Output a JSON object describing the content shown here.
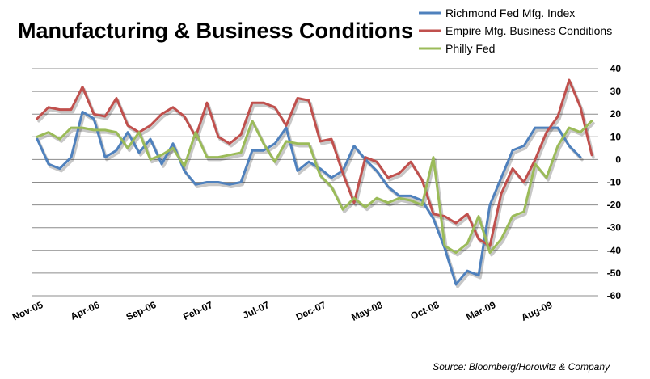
{
  "chart_data": {
    "type": "line",
    "title": "Manufacturing & Business Conditions",
    "source": "Source: Bloomberg/Horowitz & Company",
    "ylim": [
      -60,
      40
    ],
    "yticks": [
      40,
      30,
      20,
      10,
      0,
      -10,
      -20,
      -30,
      -40,
      -50,
      -60
    ],
    "y_axis_side": "right",
    "grid": true,
    "legend_position": "top-right",
    "x_tick_labels": [
      {
        "label": "Nov-05",
        "index": 0
      },
      {
        "label": "Apr-06",
        "index": 5
      },
      {
        "label": "Sep-06",
        "index": 10
      },
      {
        "label": "Feb-07",
        "index": 15
      },
      {
        "label": "Jul-07",
        "index": 20
      },
      {
        "label": "Dec-07",
        "index": 25
      },
      {
        "label": "May-08",
        "index": 30
      },
      {
        "label": "Oct-08",
        "index": 35
      },
      {
        "label": "Mar-09",
        "index": 40
      },
      {
        "label": "Aug-09",
        "index": 45
      }
    ],
    "series": [
      {
        "name": "Richmond Fed Mfg. Index",
        "color": "#4f81bd",
        "values": [
          9,
          -2,
          -4,
          1,
          21,
          18,
          1,
          4,
          12,
          3,
          9,
          -2,
          7,
          -5,
          -11,
          -10,
          -10,
          -11,
          -10,
          4,
          4,
          7,
          14,
          -5,
          -1,
          -4,
          -8,
          -5,
          6,
          0,
          -5,
          -12,
          -16,
          -16,
          -18,
          -26,
          -39,
          -55,
          -49,
          -51,
          -20,
          -8,
          4,
          6,
          14,
          14,
          14,
          6,
          1
        ]
      },
      {
        "name": "Empire Mfg. Business Conditions",
        "color": "#c0504d",
        "values": [
          18,
          23,
          22,
          22,
          32,
          20,
          19,
          27,
          15,
          12,
          15,
          20,
          23,
          19,
          10,
          25,
          10,
          7,
          11,
          25,
          25,
          23,
          15,
          27,
          26,
          8,
          9,
          -6,
          -19,
          1,
          -1,
          -8,
          -6,
          -1,
          -9,
          -24,
          -25,
          -28,
          -24,
          -35,
          -38,
          -15,
          -4,
          -10,
          0,
          12,
          19,
          35,
          23,
          2
        ]
      },
      {
        "name": "Philly Fed",
        "color": "#9bbb59",
        "values": [
          10,
          12,
          9,
          14,
          14,
          13,
          13,
          12,
          5,
          12,
          0,
          2,
          5,
          -3,
          12,
          1,
          1,
          2,
          3,
          17,
          7,
          -1,
          8,
          7,
          7,
          -7,
          -12,
          -22,
          -17,
          -21,
          -17,
          -19,
          -17,
          -18,
          -20,
          1,
          -38,
          -41,
          -37,
          -25,
          -41,
          -35,
          -25,
          -23,
          -2,
          -8,
          6,
          14,
          12,
          17
        ]
      }
    ]
  }
}
